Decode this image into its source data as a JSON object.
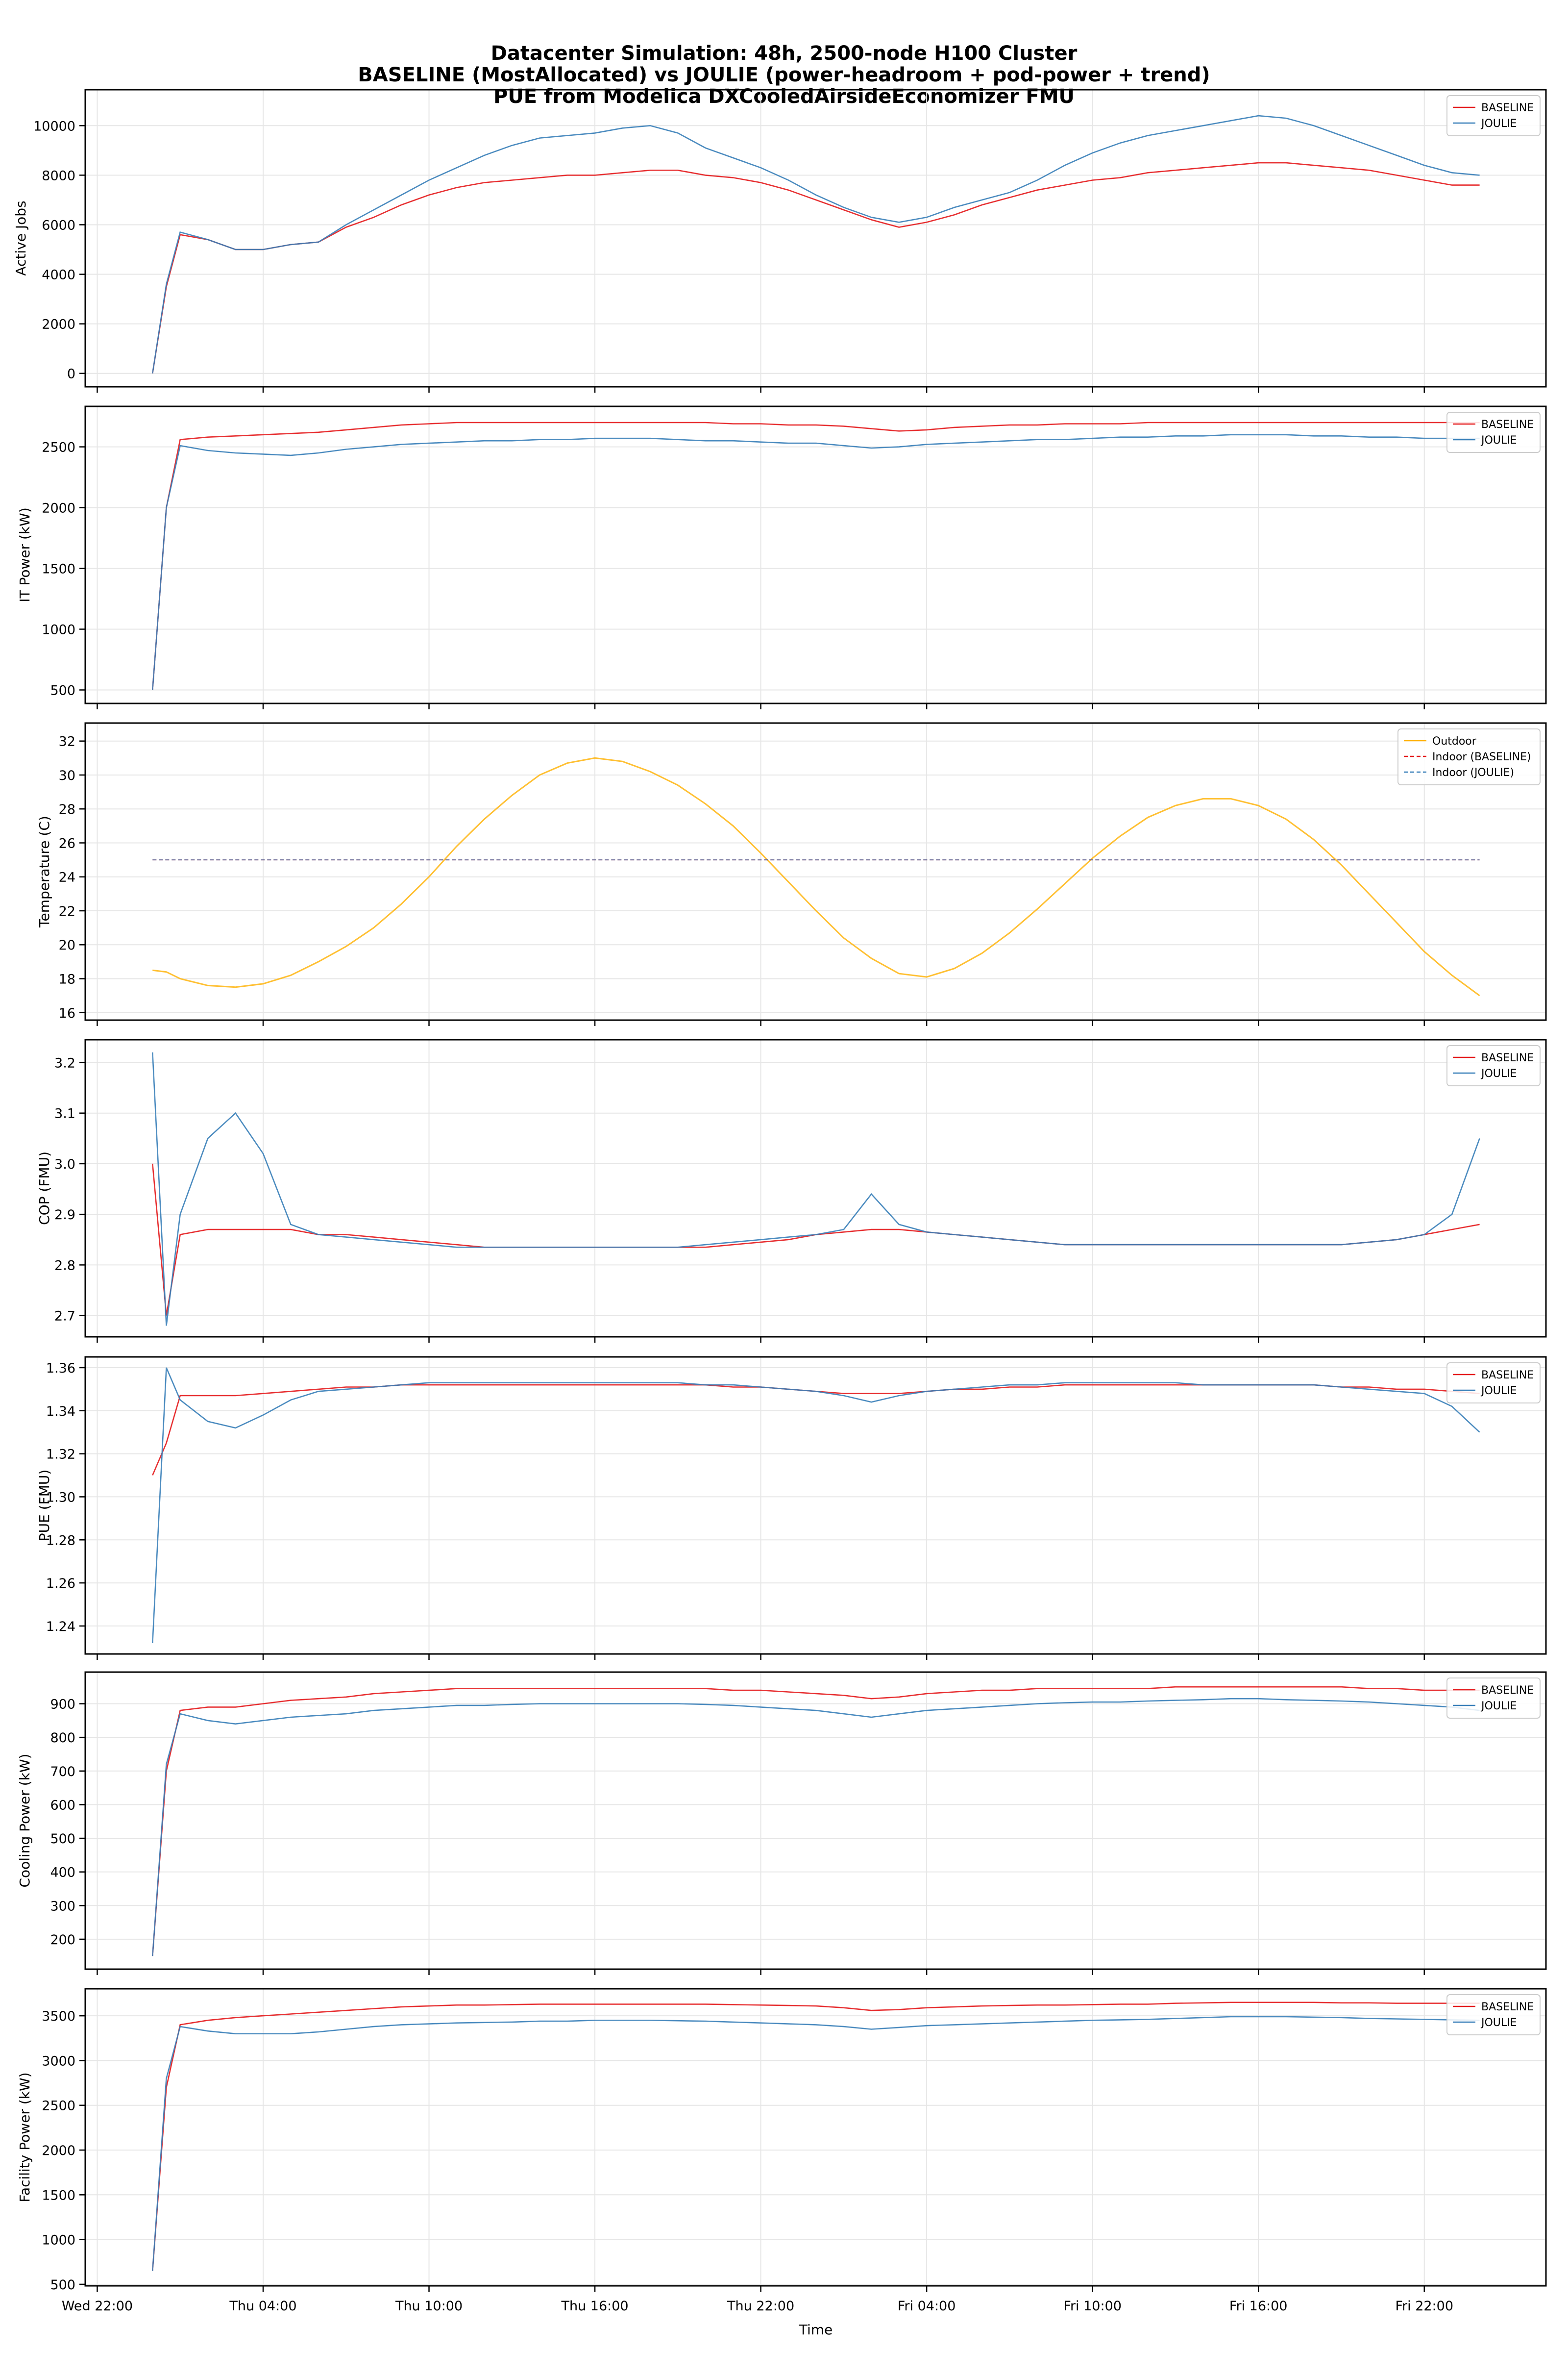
{
  "chart_data": {
    "type": "line",
    "title": [
      "Datacenter Simulation: 48h, 2500-node H100 Cluster",
      "BASELINE (MostAllocated) vs JOULIE (power-headroom + pod-power + trend)",
      "PUE from Modelica DXCooledAirsideEconomizer FMU"
    ],
    "xlabel": "Time",
    "xlim": [
      "Wed 21:34",
      "Sat 02:24"
    ],
    "xticks": [
      "Wed 22:00",
      "Thu 04:00",
      "Thu 10:00",
      "Thu 16:00",
      "Thu 22:00",
      "Fri 04:00",
      "Fri 10:00",
      "Fri 16:00",
      "Fri 22:00"
    ],
    "grid": true,
    "x": [
      "Thu 00:00",
      "Thu 00:30",
      "Thu 01:00",
      "Thu 02:00",
      "Thu 03:00",
      "Thu 04:00",
      "Thu 05:00",
      "Thu 06:00",
      "Thu 07:00",
      "Thu 08:00",
      "Thu 09:00",
      "Thu 10:00",
      "Thu 11:00",
      "Thu 12:00",
      "Thu 13:00",
      "Thu 14:00",
      "Thu 15:00",
      "Thu 16:00",
      "Thu 17:00",
      "Thu 18:00",
      "Thu 19:00",
      "Thu 20:00",
      "Thu 21:00",
      "Thu 22:00",
      "Thu 23:00",
      "Fri 00:00",
      "Fri 01:00",
      "Fri 02:00",
      "Fri 03:00",
      "Fri 04:00",
      "Fri 05:00",
      "Fri 06:00",
      "Fri 07:00",
      "Fri 08:00",
      "Fri 09:00",
      "Fri 10:00",
      "Fri 11:00",
      "Fri 12:00",
      "Fri 13:00",
      "Fri 14:00",
      "Fri 15:00",
      "Fri 16:00",
      "Fri 17:00",
      "Fri 18:00",
      "Fri 19:00",
      "Fri 20:00",
      "Fri 21:00",
      "Fri 22:00",
      "Fri 23:00",
      "Sat 00:00"
    ],
    "panels": [
      {
        "ylabel": "Active Jobs",
        "ylim": [
          -540,
          11450
        ],
        "yticks": [
          "0",
          "2000",
          "4000",
          "6000",
          "8000",
          "10000"
        ],
        "legend": "top-right",
        "series": [
          {
            "name": "BASELINE",
            "color": "#e41a1c",
            "values": [
              0,
              3500,
              5600,
              5400,
              5000,
              5000,
              5200,
              5300,
              5900,
              6300,
              6800,
              7200,
              7500,
              7700,
              7800,
              7900,
              8000,
              8000,
              8100,
              8200,
              8200,
              8000,
              7900,
              7700,
              7400,
              7000,
              6600,
              6200,
              5900,
              6100,
              6400,
              6800,
              7100,
              7400,
              7600,
              7800,
              7900,
              8100,
              8200,
              8300,
              8400,
              8500,
              8500,
              8400,
              8300,
              8200,
              8000,
              7800,
              7600,
              7600
            ]
          },
          {
            "name": "JOULIE",
            "color": "#377eb8",
            "values": [
              0,
              3600,
              5700,
              5400,
              5000,
              5000,
              5200,
              5300,
              6000,
              6600,
              7200,
              7800,
              8300,
              8800,
              9200,
              9500,
              9600,
              9700,
              9900,
              10000,
              9700,
              9100,
              8700,
              8300,
              7800,
              7200,
              6700,
              6300,
              6100,
              6300,
              6700,
              7000,
              7300,
              7800,
              8400,
              8900,
              9300,
              9600,
              9800,
              10000,
              10200,
              10400,
              10300,
              10000,
              9600,
              9200,
              8800,
              8400,
              8100,
              8000
            ]
          }
        ]
      },
      {
        "ylabel": "IT Power (kW)",
        "ylim": [
          389,
          2833
        ],
        "yticks": [
          "500",
          "1000",
          "1500",
          "2000",
          "2500"
        ],
        "legend": "top-right",
        "series": [
          {
            "name": "BASELINE",
            "color": "#e41a1c",
            "values": [
              500,
              2000,
              2560,
              2580,
              2590,
              2600,
              2610,
              2620,
              2640,
              2660,
              2680,
              2690,
              2700,
              2700,
              2700,
              2700,
              2700,
              2700,
              2700,
              2700,
              2700,
              2700,
              2690,
              2690,
              2680,
              2680,
              2670,
              2650,
              2630,
              2640,
              2660,
              2670,
              2680,
              2680,
              2690,
              2690,
              2690,
              2700,
              2700,
              2700,
              2700,
              2700,
              2700,
              2700,
              2700,
              2700,
              2700,
              2700,
              2700,
              2700
            ]
          },
          {
            "name": "JOULIE",
            "color": "#377eb8",
            "values": [
              500,
              2000,
              2510,
              2470,
              2450,
              2440,
              2430,
              2450,
              2480,
              2500,
              2520,
              2530,
              2540,
              2550,
              2550,
              2560,
              2560,
              2570,
              2570,
              2570,
              2560,
              2550,
              2550,
              2540,
              2530,
              2530,
              2510,
              2490,
              2500,
              2520,
              2530,
              2540,
              2550,
              2560,
              2560,
              2570,
              2580,
              2580,
              2590,
              2590,
              2600,
              2600,
              2600,
              2590,
              2590,
              2580,
              2580,
              2570,
              2570,
              2570
            ]
          }
        ]
      },
      {
        "ylabel": "Temperature (C)",
        "ylim": [
          15.56,
          33.06
        ],
        "yticks": [
          "16",
          "18",
          "20",
          "22",
          "24",
          "26",
          "28",
          "30",
          "32"
        ],
        "legend": "top-right",
        "series": [
          {
            "name": "Outdoor",
            "color": "#ffb000",
            "values": [
              18.5,
              18.4,
              18.0,
              17.6,
              17.5,
              17.7,
              18.2,
              19.0,
              19.9,
              21.0,
              22.4,
              24.0,
              25.8,
              27.4,
              28.8,
              30.0,
              30.7,
              31.0,
              30.8,
              30.2,
              29.4,
              28.3,
              27.0,
              25.4,
              23.7,
              22.0,
              20.4,
              19.2,
              18.3,
              18.1,
              18.6,
              19.5,
              20.7,
              22.1,
              23.6,
              25.1,
              26.4,
              27.5,
              28.2,
              28.6,
              28.6,
              28.2,
              27.4,
              26.2,
              24.7,
              23.0,
              21.3,
              19.6,
              18.2,
              17.0
            ]
          },
          {
            "name": "Indoor (BASELINE)",
            "color": "#e41a1c",
            "dashed": true,
            "constant": 25
          },
          {
            "name": "Indoor (JOULIE)",
            "color": "#377eb8",
            "dashed": true,
            "constant": 25
          }
        ]
      },
      {
        "ylabel": "COP (FMU)",
        "ylim": [
          2.658,
          3.245
        ],
        "yticks": [
          "2.7",
          "2.8",
          "2.9",
          "3.0",
          "3.1",
          "3.2"
        ],
        "legend": "top-right",
        "series": [
          {
            "name": "BASELINE",
            "color": "#e41a1c",
            "values": [
              3.0,
              2.7,
              2.86,
              2.87,
              2.87,
              2.87,
              2.87,
              2.86,
              2.86,
              2.855,
              2.85,
              2.845,
              2.84,
              2.835,
              2.835,
              2.835,
              2.835,
              2.835,
              2.835,
              2.835,
              2.835,
              2.835,
              2.84,
              2.845,
              2.85,
              2.86,
              2.865,
              2.87,
              2.87,
              2.865,
              2.86,
              2.855,
              2.85,
              2.845,
              2.84,
              2.84,
              2.84,
              2.84,
              2.84,
              2.84,
              2.84,
              2.84,
              2.84,
              2.84,
              2.84,
              2.845,
              2.85,
              2.86,
              2.87,
              2.88
            ]
          },
          {
            "name": "JOULIE",
            "color": "#377eb8",
            "values": [
              3.22,
              2.68,
              2.9,
              3.05,
              3.1,
              3.02,
              2.88,
              2.86,
              2.855,
              2.85,
              2.845,
              2.84,
              2.835,
              2.835,
              2.835,
              2.835,
              2.835,
              2.835,
              2.835,
              2.835,
              2.835,
              2.84,
              2.845,
              2.85,
              2.855,
              2.86,
              2.87,
              2.94,
              2.88,
              2.865,
              2.86,
              2.855,
              2.85,
              2.845,
              2.84,
              2.84,
              2.84,
              2.84,
              2.84,
              2.84,
              2.84,
              2.84,
              2.84,
              2.84,
              2.84,
              2.845,
              2.85,
              2.86,
              2.9,
              3.05
            ]
          }
        ]
      },
      {
        "ylabel": "PUE (FMU)",
        "ylim": [
          1.227,
          1.365
        ],
        "yticks": [
          "1.24",
          "1.26",
          "1.28",
          "1.30",
          "1.32",
          "1.34",
          "1.36"
        ],
        "legend": "top-right",
        "series": [
          {
            "name": "BASELINE",
            "color": "#e41a1c",
            "values": [
              1.31,
              1.325,
              1.347,
              1.347,
              1.347,
              1.348,
              1.349,
              1.35,
              1.351,
              1.351,
              1.352,
              1.352,
              1.352,
              1.352,
              1.352,
              1.352,
              1.352,
              1.352,
              1.352,
              1.352,
              1.352,
              1.352,
              1.351,
              1.351,
              1.35,
              1.349,
              1.348,
              1.348,
              1.348,
              1.349,
              1.35,
              1.35,
              1.351,
              1.351,
              1.352,
              1.352,
              1.352,
              1.352,
              1.352,
              1.352,
              1.352,
              1.352,
              1.352,
              1.352,
              1.351,
              1.351,
              1.35,
              1.35,
              1.349,
              1.348
            ]
          },
          {
            "name": "JOULIE",
            "color": "#377eb8",
            "values": [
              1.232,
              1.36,
              1.345,
              1.335,
              1.332,
              1.338,
              1.345,
              1.349,
              1.35,
              1.351,
              1.352,
              1.353,
              1.353,
              1.353,
              1.353,
              1.353,
              1.353,
              1.353,
              1.353,
              1.353,
              1.353,
              1.352,
              1.352,
              1.351,
              1.35,
              1.349,
              1.347,
              1.344,
              1.347,
              1.349,
              1.35,
              1.351,
              1.352,
              1.352,
              1.353,
              1.353,
              1.353,
              1.353,
              1.353,
              1.352,
              1.352,
              1.352,
              1.352,
              1.352,
              1.351,
              1.35,
              1.349,
              1.348,
              1.342,
              1.33
            ]
          }
        ]
      },
      {
        "ylabel": "Cooling Power (kW)",
        "ylim": [
          111,
          994
        ],
        "yticks": [
          "200",
          "300",
          "400",
          "500",
          "600",
          "700",
          "800",
          "900"
        ],
        "legend": "top-right",
        "series": [
          {
            "name": "BASELINE",
            "color": "#e41a1c",
            "values": [
              150,
              700,
              880,
              890,
              890,
              900,
              910,
              915,
              920,
              930,
              935,
              940,
              945,
              945,
              945,
              945,
              945,
              945,
              945,
              945,
              945,
              945,
              940,
              940,
              935,
              930,
              925,
              915,
              920,
              930,
              935,
              940,
              940,
              945,
              945,
              945,
              945,
              945,
              950,
              950,
              950,
              950,
              950,
              950,
              950,
              945,
              945,
              940,
              940,
              940
            ]
          },
          {
            "name": "JOULIE",
            "color": "#377eb8",
            "values": [
              150,
              720,
              870,
              850,
              840,
              850,
              860,
              865,
              870,
              880,
              885,
              890,
              895,
              895,
              898,
              900,
              900,
              900,
              900,
              900,
              900,
              898,
              895,
              890,
              885,
              880,
              870,
              860,
              870,
              880,
              885,
              890,
              895,
              900,
              903,
              905,
              905,
              908,
              910,
              912,
              915,
              915,
              912,
              910,
              908,
              905,
              900,
              895,
              890,
              880
            ]
          }
        ]
      },
      {
        "ylabel": "Facility Power (kW)",
        "ylim": [
          483,
          3802
        ],
        "yticks": [
          "500",
          "1000",
          "1500",
          "2000",
          "2500",
          "3000",
          "3500"
        ],
        "legend": "top-right",
        "series": [
          {
            "name": "BASELINE",
            "color": "#e41a1c",
            "values": [
              650,
              2700,
              3400,
              3450,
              3480,
              3500,
              3520,
              3540,
              3560,
              3580,
              3600,
              3610,
              3620,
              3620,
              3625,
              3630,
              3630,
              3630,
              3630,
              3630,
              3630,
              3630,
              3625,
              3620,
              3615,
              3610,
              3590,
              3560,
              3570,
              3590,
              3600,
              3610,
              3615,
              3620,
              3620,
              3625,
              3630,
              3630,
              3640,
              3645,
              3650,
              3650,
              3650,
              3650,
              3645,
              3645,
              3640,
              3640,
              3640,
              3640
            ]
          },
          {
            "name": "JOULIE",
            "color": "#377eb8",
            "values": [
              650,
              2800,
              3380,
              3330,
              3300,
              3300,
              3300,
              3320,
              3350,
              3380,
              3400,
              3410,
              3420,
              3425,
              3430,
              3440,
              3440,
              3450,
              3450,
              3450,
              3445,
              3440,
              3430,
              3420,
              3410,
              3400,
              3380,
              3350,
              3370,
              3390,
              3400,
              3410,
              3420,
              3430,
              3440,
              3450,
              3455,
              3460,
              3470,
              3480,
              3490,
              3490,
              3490,
              3485,
              3480,
              3470,
              3465,
              3460,
              3455,
              3450
            ]
          }
        ]
      }
    ]
  }
}
